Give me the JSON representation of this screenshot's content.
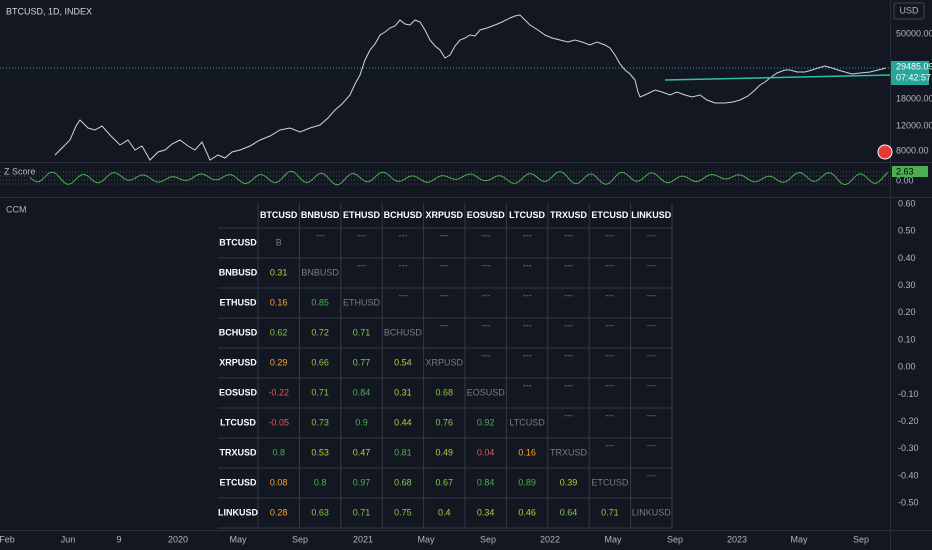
{
  "header": {
    "symbol": "BTCUSD, 1D, INDEX",
    "currency": "USD"
  },
  "price_axis": {
    "labels": [
      "50000.00",
      "18000.00",
      "12000.00",
      "8000.00"
    ],
    "last_price": "29485.09",
    "countdown": "07:42:57"
  },
  "indicator": {
    "name": "Z Score",
    "value": "2.63",
    "zero_label": "0.00"
  },
  "ccm": {
    "name": "CCM",
    "axis_labels": [
      "0.60",
      "0.50",
      "0.40",
      "0.30",
      "0.20",
      "0.10",
      "0.00",
      "-0.10",
      "-0.20",
      "-0.30",
      "-0.40",
      "-0.50"
    ],
    "table": {
      "columns": [
        "BTCUSD",
        "BNBUSD",
        "ETHUSD",
        "BCHUSD",
        "XRPUSD",
        "EOSUSD",
        "LTCUSD",
        "TRXUSD",
        "ETCUSD",
        "LINKUSD"
      ],
      "rows": [
        [
          "BTCUSD",
          "B",
          "---",
          "---",
          "---",
          "---",
          "---",
          "---",
          "---",
          "---",
          "---"
        ],
        [
          "BNBUSD",
          "0.31",
          "BNBUSD",
          "---",
          "---",
          "---",
          "---",
          "---",
          "---",
          "---",
          "---"
        ],
        [
          "ETHUSD",
          "0.16",
          "0.85",
          "ETHUSD",
          "---",
          "---",
          "---",
          "---",
          "---",
          "---",
          "---"
        ],
        [
          "BCHUSD",
          "0.62",
          "0.72",
          "0.71",
          "BCHUSD",
          "---",
          "---",
          "---",
          "---",
          "---",
          "---"
        ],
        [
          "XRPUSD",
          "0.29",
          "0.66",
          "0.77",
          "0.54",
          "XRPUSD",
          "---",
          "---",
          "---",
          "---",
          "---"
        ],
        [
          "EOSUSD",
          "-0.22",
          "0.71",
          "0.84",
          "0.31",
          "0.68",
          "EOSUSD",
          "---",
          "---",
          "---",
          "---"
        ],
        [
          "LTCUSD",
          "-0.05",
          "0.73",
          "0.9",
          "0.44",
          "0.76",
          "0.92",
          "LTCUSD",
          "---",
          "---",
          "---"
        ],
        [
          "TRXUSD",
          "0.8",
          "0.53",
          "0.47",
          "0.81",
          "0.49",
          "0.04",
          "0.16",
          "TRXUSD",
          "---",
          "---"
        ],
        [
          "ETCUSD",
          "0.08",
          "0.8",
          "0.97",
          "0.68",
          "0.67",
          "0.84",
          "0.89",
          "0.39",
          "ETCUSD",
          "---"
        ],
        [
          "LINKUSD",
          "0.28",
          "0.63",
          "0.71",
          "0.75",
          "0.4",
          "0.34",
          "0.46",
          "0.64",
          "0.71",
          "LINKUSD"
        ]
      ]
    }
  },
  "time_axis": [
    "Feb",
    "Jun",
    "9",
    "2020",
    "May",
    "Sep",
    "2021",
    "May",
    "Sep",
    "2022",
    "May",
    "Sep",
    "2023",
    "May",
    "Sep"
  ]
}
